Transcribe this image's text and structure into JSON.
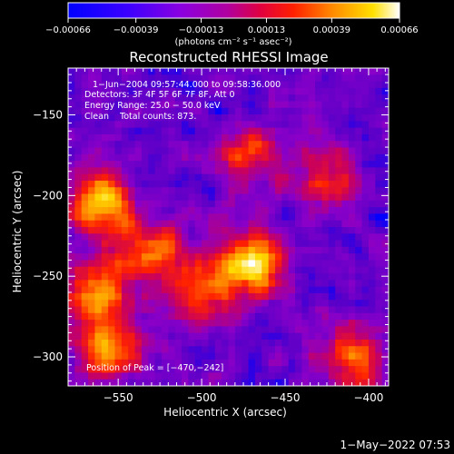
{
  "chart_data": {
    "type": "heatmap",
    "title": "Reconstructed RHESSI Image",
    "xlabel": "Heliocentric X (arcsec)",
    "ylabel": "Heliocentric Y (arcsec)",
    "xlim": [
      -580,
      -388
    ],
    "ylim": [
      -318,
      -121
    ],
    "x_ticks": [
      -550,
      -500,
      -450,
      -400
    ],
    "x_tick_labels": [
      "−550",
      "−500",
      "−450",
      "−400"
    ],
    "y_ticks": [
      -150,
      -200,
      -250,
      -300
    ],
    "y_tick_labels": [
      "−150",
      "−200",
      "−250",
      "−300"
    ],
    "colorbar": {
      "range": [
        -0.00066,
        0.00066
      ],
      "tick_values": [
        -0.00066,
        -0.00039,
        -0.00013,
        0.00013,
        0.00039,
        0.00066
      ],
      "tick_labels": [
        "−0.00066",
        "−0.00039",
        "−0.00013",
        "0.00013",
        "0.00039",
        "0.00066"
      ],
      "units_label": "(photons cm⁻² s⁻¹ asec⁻²)"
    },
    "annotations": [
      "1−Jun−2004 09:57:44.000 to 09:58:36.000",
      "Detectors: 3F 4F 5F 6F 7F 8F, Att 0",
      "Energy Range: 25.0 − 50.0 keV",
      "Clean    Total counts: 873."
    ],
    "peak_label": "Position of Peak = [−470,−242]",
    "peak": {
      "x": -470,
      "y": -242
    },
    "bright_regions": [
      {
        "x": -470,
        "y": -242,
        "intensity": 1.0
      },
      {
        "x": -560,
        "y": -205,
        "intensity": 0.85
      },
      {
        "x": -555,
        "y": -295,
        "intensity": 0.75
      },
      {
        "x": -565,
        "y": -260,
        "intensity": 0.7
      },
      {
        "x": -530,
        "y": -235,
        "intensity": 0.6
      },
      {
        "x": -500,
        "y": -260,
        "intensity": 0.55
      },
      {
        "x": -470,
        "y": -175,
        "intensity": 0.5
      },
      {
        "x": -410,
        "y": -300,
        "intensity": 0.55
      },
      {
        "x": -425,
        "y": -190,
        "intensity": 0.45
      }
    ],
    "timestamp": "1−May−2022 07:53"
  },
  "colors": {
    "background": "#000000",
    "text": "#ffffff",
    "colormap": [
      "#0000ff",
      "#5a00c8",
      "#8a00c8",
      "#c80060",
      "#ff2000",
      "#ff8c00",
      "#ffdc00",
      "#ffffff"
    ]
  }
}
